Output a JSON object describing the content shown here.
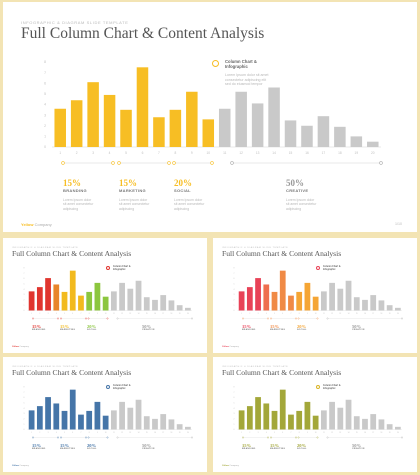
{
  "header": {
    "kicker": "INFOGRAPHIC & DIAGRAM SLIDE TEMPLATE",
    "title": "Full Column Chart & Content Analysis"
  },
  "legend": {
    "title": "Column Chart &\nInfographic",
    "desc": "Lorem Ipsum dolor sit amet\nconsectetur adipiscing elit\nsed do eiusmod tempor"
  },
  "stats": [
    {
      "pct": "15%",
      "label": "BRANDING",
      "desc": "Lorem Ipsum dolor\nsit amet consectetur\nadipiscing"
    },
    {
      "pct": "15%",
      "label": "MARKETING",
      "desc": "Lorem Ipsum dolor\nsit amet consectetur\nadipiscing"
    },
    {
      "pct": "20%",
      "label": "SOCIAL",
      "desc": "Lorem Ipsum dolor\nsit amet consectetur\nadipiscing"
    },
    {
      "pct": "50%",
      "label": "CREATIVE",
      "desc": "Lorem Ipsum dolor\nsit amet consectetur\nadipiscing"
    }
  ],
  "footer": {
    "brand": "Yellow",
    "brand_rest": "Company",
    "page": "1/10"
  },
  "chart_data": {
    "type": "bar",
    "categories": [
      "1",
      "2",
      "3",
      "4",
      "5",
      "6",
      "7",
      "8",
      "9",
      "10",
      "11",
      "12",
      "13",
      "14",
      "15",
      "16",
      "17",
      "18",
      "19",
      "20"
    ],
    "series": [
      {
        "values": [
          3.6,
          4.4,
          6.1,
          4.9,
          3.5,
          7.5,
          2.8,
          3.5,
          5.2,
          2.6,
          3.6,
          5.2,
          4.1,
          5.6,
          2.5,
          2.0,
          2.9,
          1.9,
          1.0,
          0.5
        ]
      }
    ],
    "y_ticks": [
      "0",
      "1",
      "2",
      "3",
      "4",
      "5",
      "6",
      "7",
      "8"
    ],
    "ylim": [
      0,
      8
    ]
  },
  "variants": [
    {
      "name": "yellow",
      "colors": [
        "#f7be24",
        "#f7be24",
        "#f7be24",
        "#f7be24",
        "#f7be24",
        "#f7be24",
        "#f7be24",
        "#f7be24",
        "#f7be24",
        "#f7be24"
      ],
      "ring": "#f7be24",
      "accent": "#f7be24"
    },
    {
      "name": "rainbow",
      "colors": [
        "#e0352f",
        "#e0352f",
        "#e0352f",
        "#e8852a",
        "#f2ba1e",
        "#f2ba1e",
        "#f2ba1e",
        "#8cc63e",
        "#8cc63e",
        "#8cc63e"
      ],
      "ring": "#e0352f",
      "accent": "#e0352f"
    },
    {
      "name": "warm",
      "colors": [
        "#e84257",
        "#e84257",
        "#e84257",
        "#ee6f4f",
        "#f08a45",
        "#f08a45",
        "#f08a45",
        "#f5a534",
        "#f5a534",
        "#f5a534"
      ],
      "ring": "#e84257",
      "accent": "#f08a45"
    },
    {
      "name": "blue",
      "colors": [
        "#4575a8",
        "#4575a8",
        "#4575a8",
        "#4575a8",
        "#4575a8",
        "#4575a8",
        "#4575a8",
        "#4575a8",
        "#4575a8",
        "#4575a8"
      ],
      "ring": "#4575a8",
      "accent": "#4575a8"
    },
    {
      "name": "olive",
      "colors": [
        "#a3a73a",
        "#a3a73a",
        "#a3a73a",
        "#a3a73a",
        "#a3a73a",
        "#a3a73a",
        "#a3a73a",
        "#a3a73a",
        "#a3a73a",
        "#a3a73a"
      ],
      "ring": "#d9b526",
      "accent": "#a3a73a"
    }
  ],
  "gray_color": "#c9c9c9",
  "axis_color": "#d6d6d6",
  "label_color": "#bfbfbf"
}
